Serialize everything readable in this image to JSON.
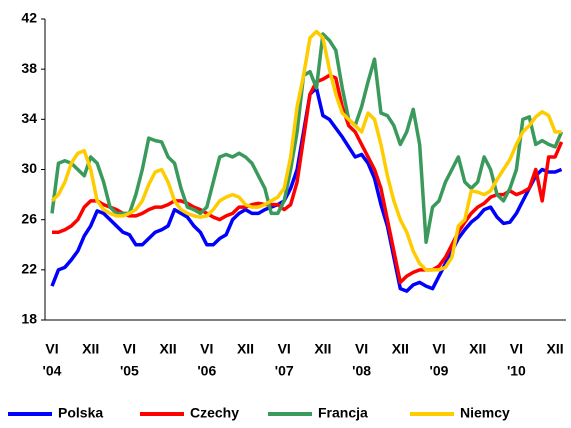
{
  "chart_data": {
    "type": "line",
    "categories": [
      "VI",
      null,
      null,
      null,
      null,
      null,
      "XII",
      null,
      null,
      null,
      null,
      null,
      "VI",
      null,
      null,
      null,
      null,
      null,
      "XII",
      null,
      null,
      null,
      null,
      null,
      "VI",
      null,
      null,
      null,
      null,
      null,
      "XII",
      null,
      null,
      null,
      null,
      null,
      "VI",
      null,
      null,
      null,
      null,
      null,
      "XII",
      null,
      null,
      null,
      null,
      null,
      "VI",
      null,
      null,
      null,
      null,
      null,
      "XII",
      null,
      null,
      null,
      null,
      null,
      "VI",
      null,
      null,
      null,
      null,
      null,
      "XII",
      null,
      null,
      null,
      null,
      null,
      "VI",
      null,
      null,
      null,
      null,
      null,
      "XII",
      null
    ],
    "category_years": [
      "'04",
      null,
      null,
      null,
      null,
      null,
      null,
      null,
      null,
      null,
      null,
      null,
      "'05",
      null,
      null,
      null,
      null,
      null,
      null,
      null,
      null,
      null,
      null,
      null,
      "'06",
      null,
      null,
      null,
      null,
      null,
      null,
      null,
      null,
      null,
      null,
      null,
      "'07",
      null,
      null,
      null,
      null,
      null,
      null,
      null,
      null,
      null,
      null,
      null,
      "'08",
      null,
      null,
      null,
      null,
      null,
      null,
      null,
      null,
      null,
      null,
      null,
      "'09",
      null,
      null,
      null,
      null,
      null,
      null,
      null,
      null,
      null,
      null,
      null,
      "'10",
      null,
      null,
      null,
      null,
      null,
      null,
      null
    ],
    "series": [
      {
        "name": "Polska",
        "color": "#0000ff",
        "values": [
          20.7,
          22,
          22.2,
          22.8,
          23.5,
          24.7,
          25.5,
          26.7,
          26.5,
          26,
          25.5,
          25,
          24.8,
          24,
          24,
          24.5,
          25,
          25.2,
          25.5,
          26.8,
          26.5,
          26.2,
          25.5,
          25,
          24,
          24,
          24.5,
          24.8,
          26,
          26.5,
          26.8,
          26.5,
          26.5,
          26.8,
          27,
          27.2,
          27.5,
          28.5,
          30,
          33,
          36,
          36.5,
          34.3,
          34,
          33.3,
          32.6,
          31.8,
          31,
          31.2,
          30.5,
          29.3,
          27.2,
          25.5,
          23,
          20.5,
          20.3,
          20.8,
          21,
          20.7,
          20.5,
          21.5,
          22.5,
          23.5,
          24.5,
          25.2,
          25.8,
          26.2,
          26.8,
          27,
          26.2,
          25.7,
          25.8,
          26.5,
          27.5,
          28.5,
          29.5,
          30,
          29.8,
          29.8,
          30
        ]
      },
      {
        "name": "Czechy",
        "color": "#ff0000",
        "values": [
          25,
          25,
          25.2,
          25.5,
          26,
          27,
          27.5,
          27.5,
          27.2,
          27,
          26.8,
          26.5,
          26.3,
          26.3,
          26.5,
          26.8,
          27,
          27,
          27.2,
          27.5,
          27.5,
          27.3,
          27,
          26.8,
          26.5,
          26.2,
          26,
          26.3,
          26.5,
          27,
          27,
          27.2,
          27.3,
          27.2,
          27.2,
          27.2,
          26.8,
          27.2,
          29,
          32.5,
          36,
          37,
          37.2,
          37.5,
          37.3,
          35,
          33.5,
          33,
          32,
          31,
          30,
          28.5,
          26,
          23.5,
          21,
          21.5,
          21.8,
          22,
          22,
          22,
          22.3,
          23,
          24,
          25,
          25.8,
          26.5,
          27,
          27.3,
          27.8,
          28,
          28,
          28.3,
          28,
          28.2,
          28.5,
          30,
          27.5,
          31,
          31,
          32.2
        ]
      },
      {
        "name": "Francja",
        "color": "#3a9a5c",
        "values": [
          26.5,
          30.5,
          30.7,
          30.5,
          30,
          29.5,
          31,
          30.5,
          29,
          27,
          26.5,
          26.5,
          26.5,
          28,
          30,
          32.5,
          32.3,
          32.2,
          31,
          30.5,
          28.5,
          27,
          26.8,
          26.5,
          27,
          29,
          31,
          31.2,
          31,
          31.3,
          31,
          30.5,
          29.5,
          28.5,
          26.5,
          26.5,
          27.5,
          30,
          33,
          37.5,
          37.8,
          36.5,
          40.8,
          40.3,
          39.5,
          36.5,
          34,
          33.5,
          35,
          37,
          38.8,
          34.5,
          34.3,
          33.5,
          32,
          33,
          34.8,
          32,
          24.2,
          27,
          27.5,
          29,
          30,
          31,
          29,
          28.5,
          29,
          31,
          30,
          28,
          27.5,
          28.5,
          30,
          34,
          34.2,
          32,
          32.3,
          32,
          31.8,
          33
        ]
      },
      {
        "name": "Niemcy",
        "color": "#ffcc00",
        "values": [
          27.5,
          28,
          29,
          30.5,
          31.3,
          31.5,
          30,
          27.5,
          26.8,
          26.5,
          26.3,
          26.3,
          26.5,
          26.8,
          27.5,
          28.8,
          29.8,
          30,
          29,
          27.5,
          26.8,
          26.5,
          26.3,
          26.2,
          26.3,
          26.8,
          27.5,
          27.8,
          28,
          27.8,
          27.2,
          27,
          27,
          27.2,
          27.5,
          27.8,
          28.5,
          31,
          35,
          37.5,
          40.5,
          41,
          40.5,
          38,
          36,
          34.5,
          34,
          33.5,
          33,
          34.5,
          34,
          32,
          29.5,
          27.5,
          26,
          25,
          23.5,
          22.5,
          22,
          22,
          22,
          22.2,
          23,
          25.5,
          26,
          28.3,
          28.2,
          28,
          28.3,
          29.2,
          30,
          30.8,
          32,
          33,
          33.5,
          34.2,
          34.6,
          34.3,
          33,
          33
        ]
      }
    ],
    "ylim": [
      18,
      42
    ],
    "yticks": [
      18,
      22,
      26,
      30,
      34,
      38,
      42
    ],
    "grid": false,
    "legend": "bottom"
  }
}
